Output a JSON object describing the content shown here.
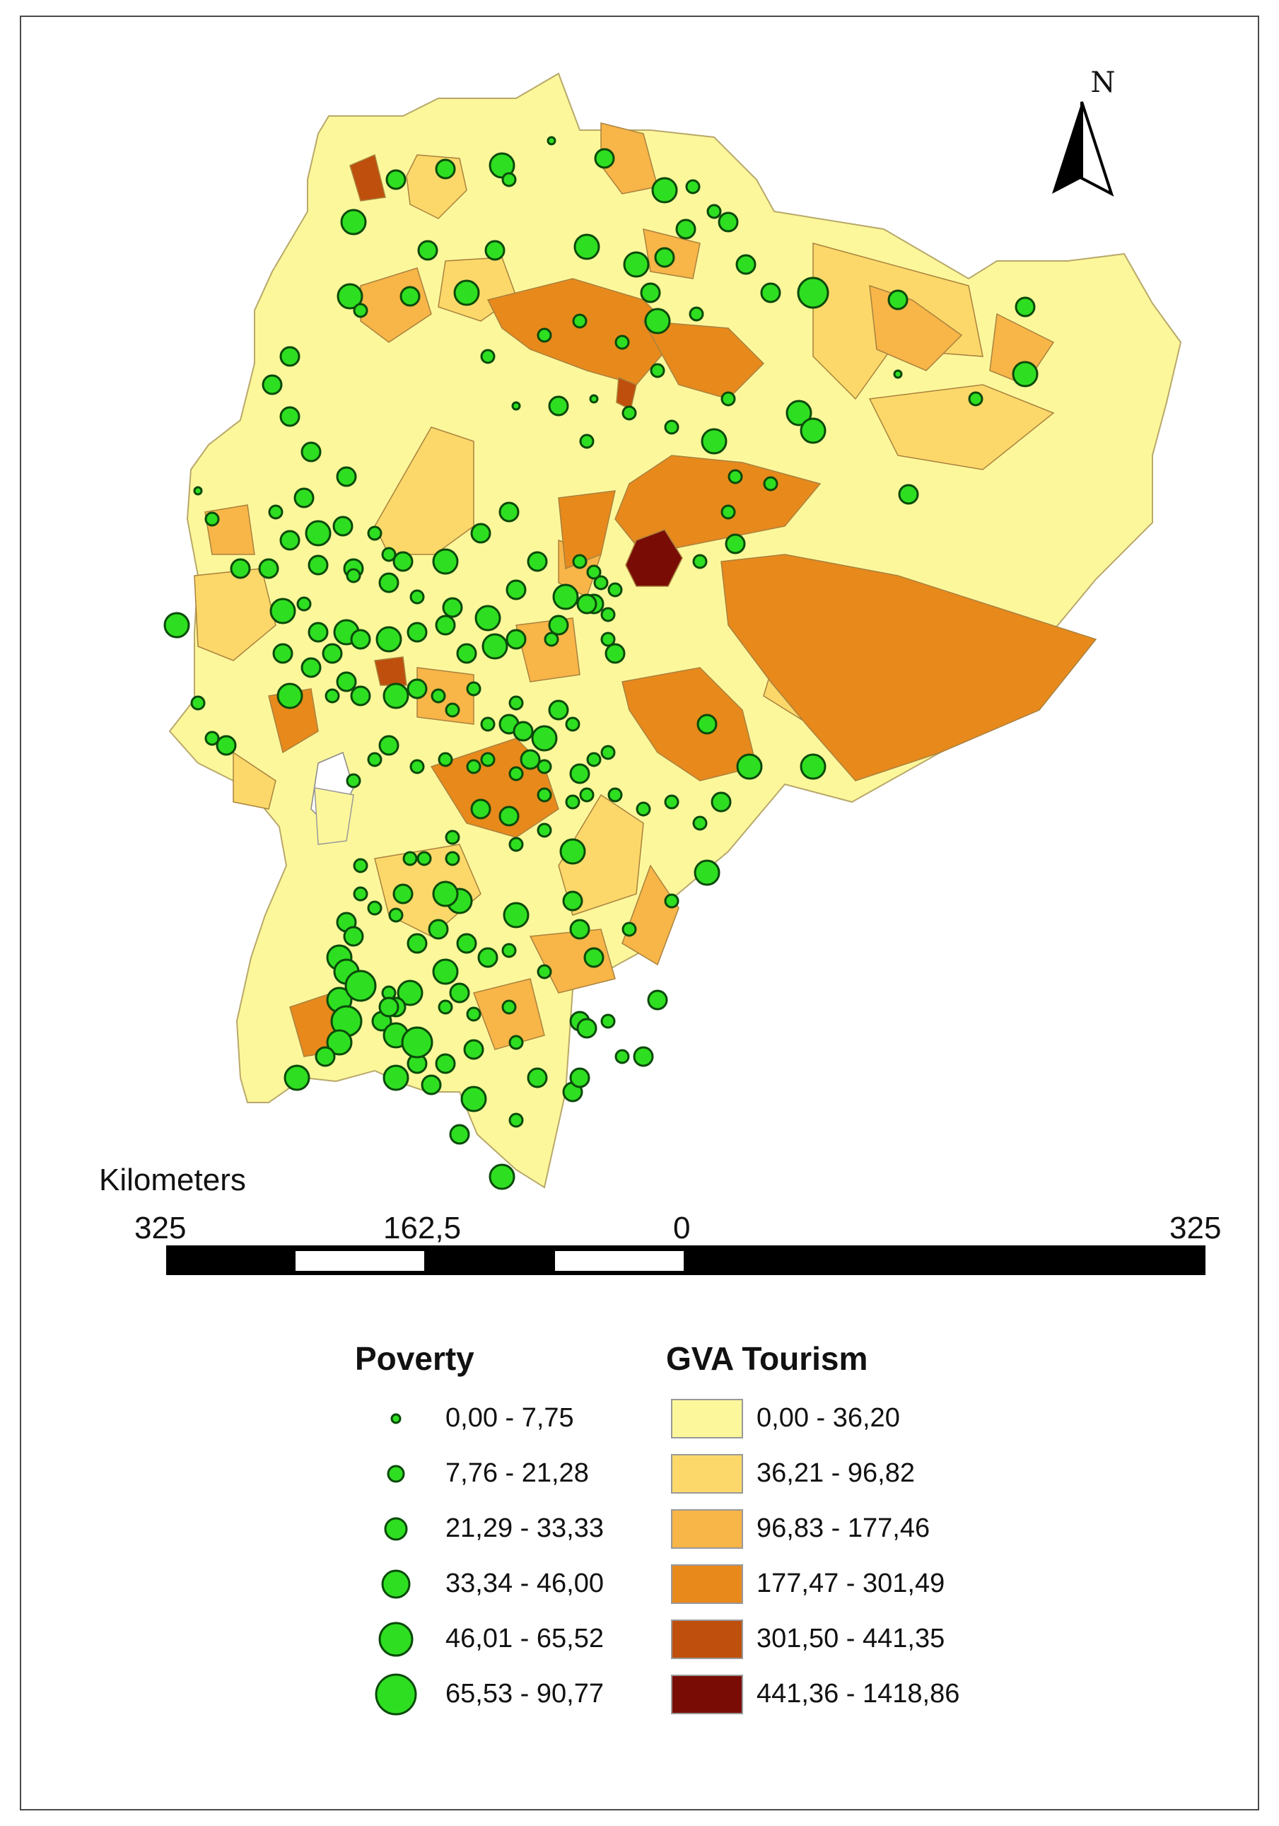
{
  "compass": {
    "label": "N"
  },
  "scale_bar": {
    "unit_label": "Kilometers",
    "ticks": [
      "325",
      "162,5",
      "0",
      "325"
    ]
  },
  "legend": {
    "poverty": {
      "title": "Poverty",
      "classes": [
        "0,00 - 7,75",
        "7,76 - 21,28",
        "21,29 - 33,33",
        "33,34 - 46,00",
        "46,01 - 65,52",
        "65,53 - 90,77"
      ]
    },
    "gva_tourism": {
      "title": "GVA Tourism",
      "classes": [
        "0,00 - 36,20",
        "36,21 - 96,82",
        "96,83 - 177,46",
        "177,47 - 301,49",
        "301,50 - 441,35",
        "441,36 - 1418,86"
      ],
      "colors": [
        "#fdf79b",
        "#fcd86a",
        "#f8b548",
        "#e8891c",
        "#bf4f0c",
        "#7a0c06"
      ]
    }
  },
  "colors": {
    "circle_fill": "#2edf21",
    "circle_stroke": "#0a4a0a"
  }
}
